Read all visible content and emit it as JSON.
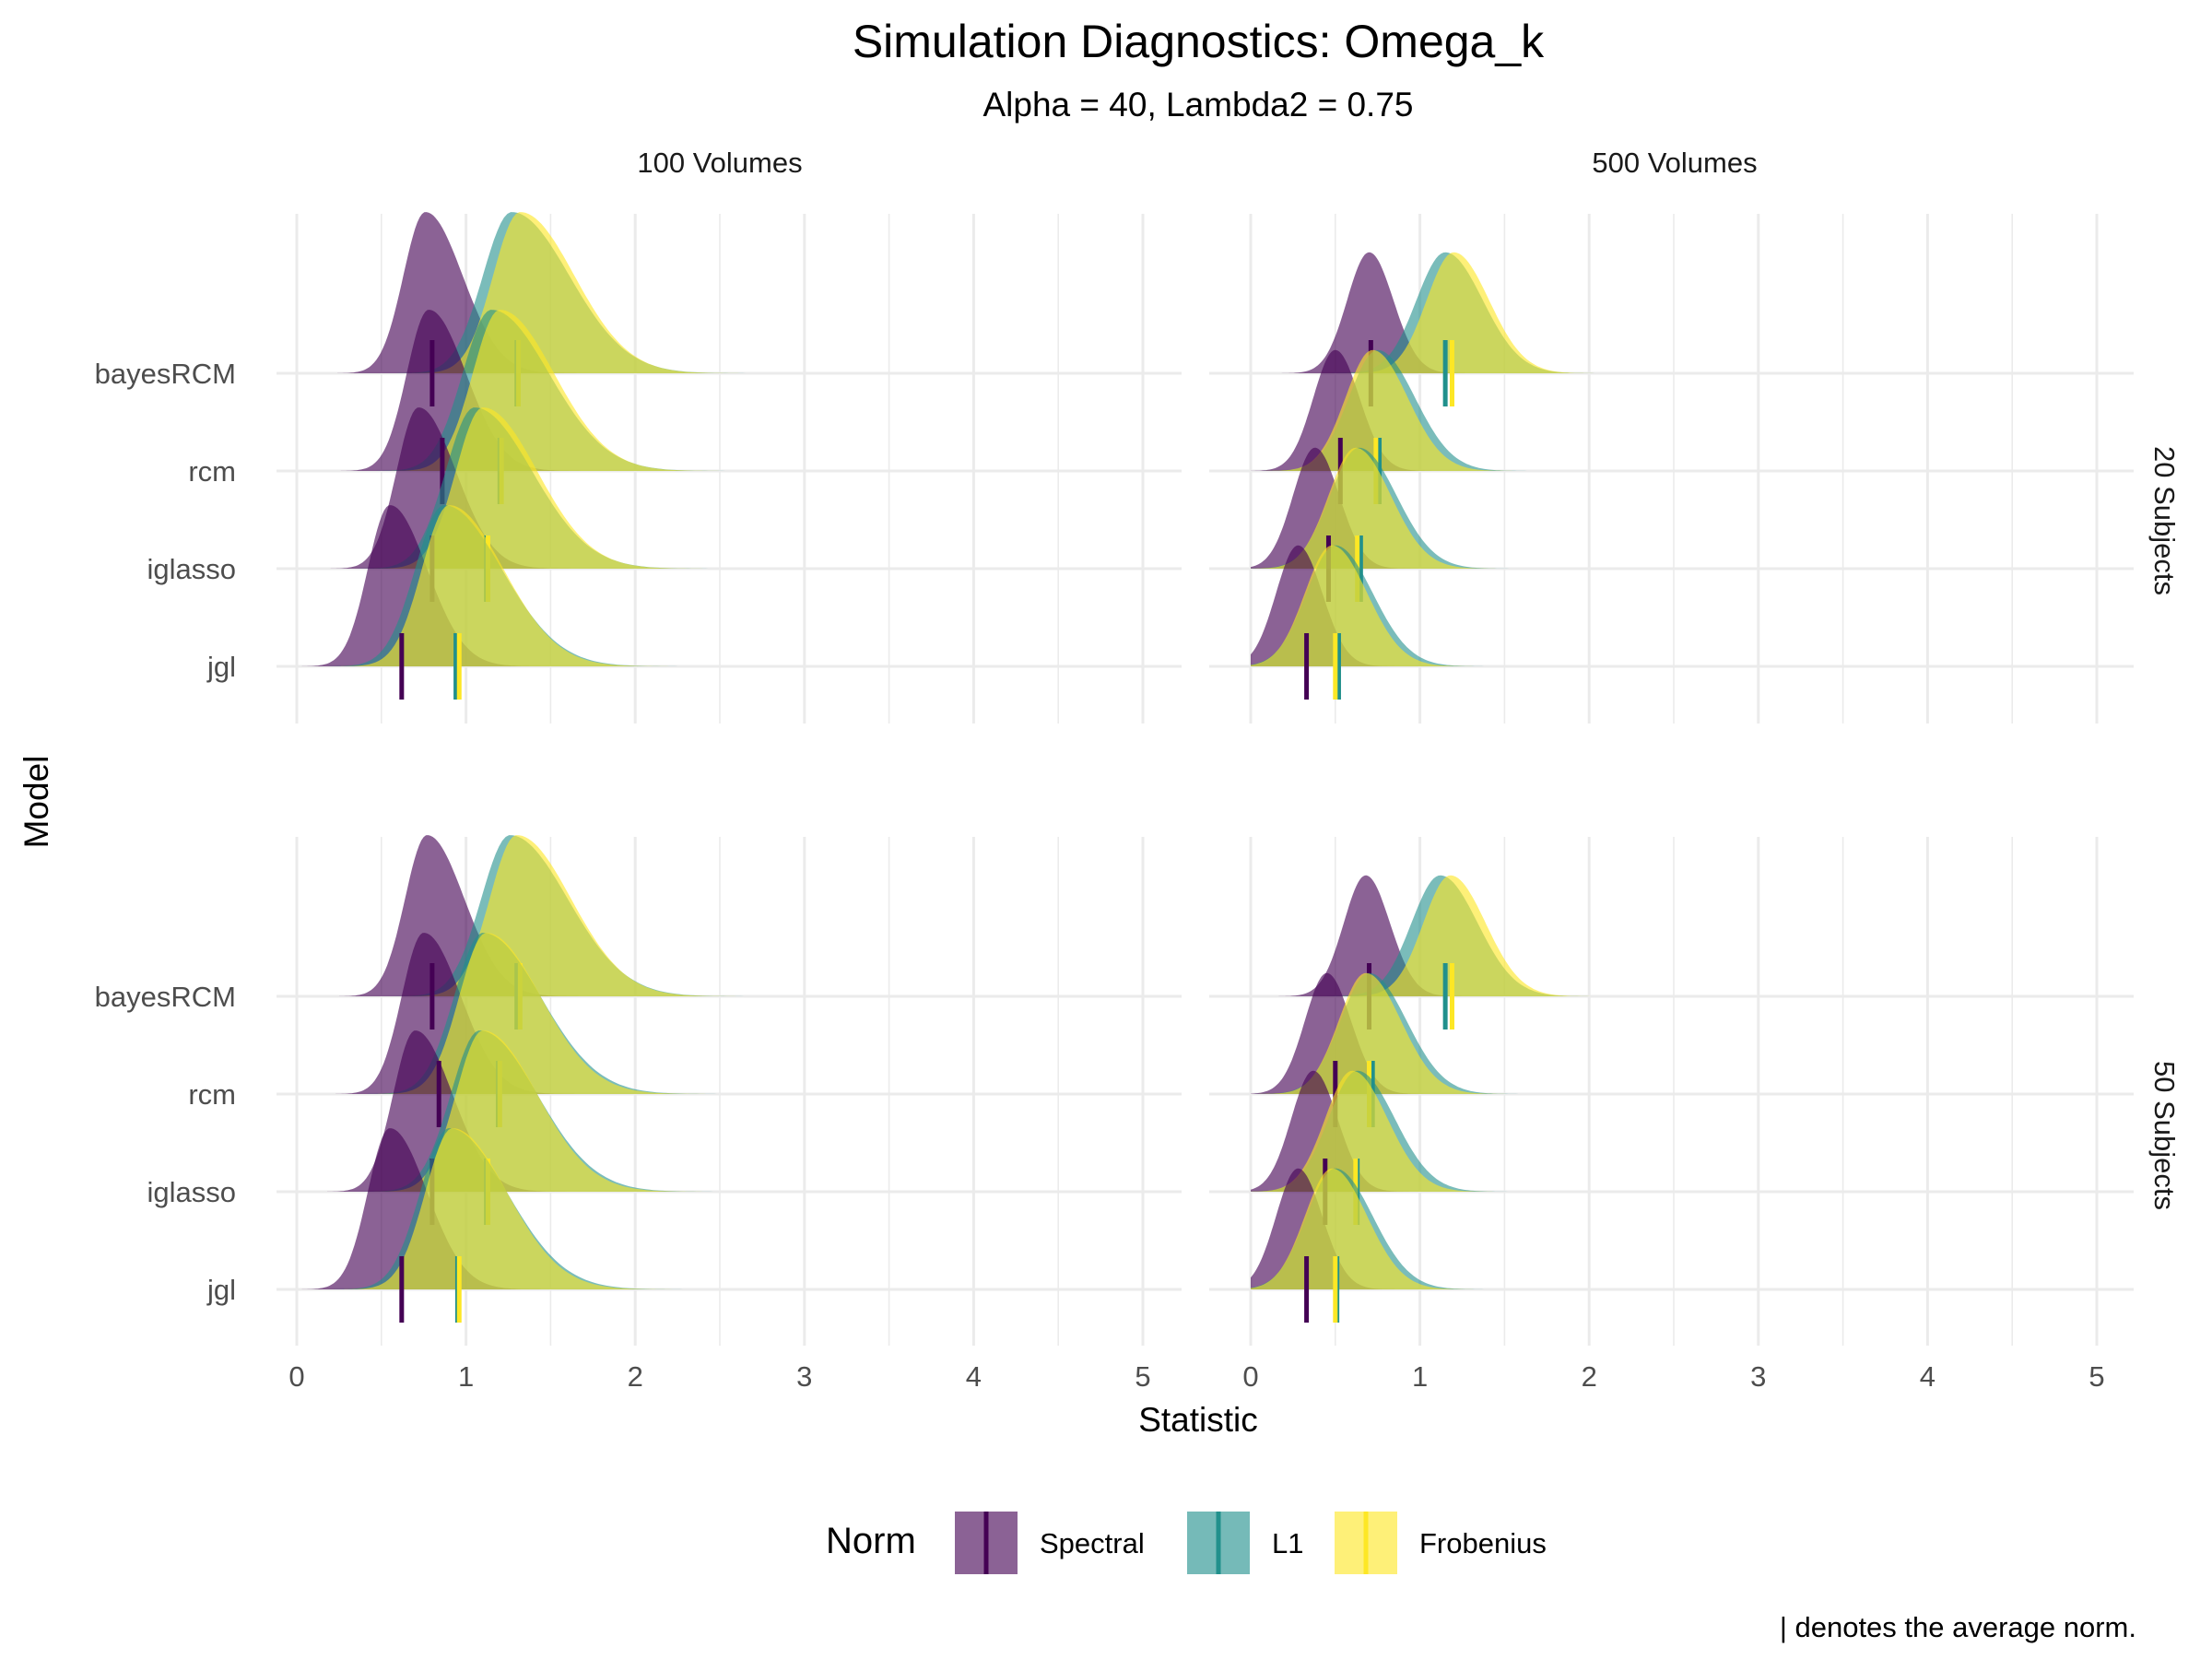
{
  "chart_data": {
    "type": "ridgeline",
    "title": "Simulation Diagnostics: Omega_k",
    "subtitle": "Alpha = 40, Lambda2 = 0.75",
    "xlabel": "Statistic",
    "ylabel": "Model",
    "xlim": [
      0,
      5
    ],
    "x_ticks": [
      "0",
      "1",
      "2",
      "3",
      "4",
      "5"
    ],
    "grid": true,
    "facet_columns": [
      "100 Volumes",
      "500 Volumes"
    ],
    "facet_rows": [
      "20 Subjects",
      "50 Subjects"
    ],
    "models": [
      "bayesRCM",
      "rcm",
      "iglasso",
      "jgl"
    ],
    "legend": {
      "title": "Norm",
      "position": "bottom",
      "entries": [
        {
          "name": "Spectral",
          "color": "#440154"
        },
        {
          "name": "L1",
          "color": "#21908C"
        },
        {
          "name": "Frobenius",
          "color": "#FDE725"
        }
      ]
    },
    "caption": "| denotes the average norm.",
    "panels": [
      {
        "column": "100 Volumes",
        "row": "20 Subjects",
        "means": {
          "bayesRCM": {
            "Spectral": 0.8,
            "L1": 1.3,
            "Frobenius": 1.31
          },
          "rcm": {
            "Spectral": 0.86,
            "L1": 1.2,
            "Frobenius": 1.21
          },
          "iglasso": {
            "Spectral": 0.8,
            "L1": 1.12,
            "Frobenius": 1.13
          },
          "jgl": {
            "Spectral": 0.62,
            "L1": 0.94,
            "Frobenius": 0.96
          }
        },
        "density_peaks": {
          "bayesRCM": {
            "Spectral": 0.76,
            "L1": 1.27,
            "Frobenius": 1.32
          },
          "rcm": {
            "Spectral": 0.78,
            "L1": 1.15,
            "Frobenius": 1.2
          },
          "iglasso": {
            "Spectral": 0.72,
            "L1": 1.05,
            "Frobenius": 1.1
          },
          "jgl": {
            "Spectral": 0.55,
            "L1": 0.87,
            "Frobenius": 0.9
          }
        }
      },
      {
        "column": "500 Volumes",
        "row": "20 Subjects",
        "means": {
          "bayesRCM": {
            "Spectral": 0.71,
            "L1": 1.15,
            "Frobenius": 1.19
          },
          "rcm": {
            "Spectral": 0.53,
            "L1": 0.76,
            "Frobenius": 0.74
          },
          "iglasso": {
            "Spectral": 0.46,
            "L1": 0.65,
            "Frobenius": 0.63
          },
          "jgl": {
            "Spectral": 0.33,
            "L1": 0.52,
            "Frobenius": 0.5
          }
        },
        "density_peaks": {
          "bayesRCM": {
            "Spectral": 0.7,
            "L1": 1.15,
            "Frobenius": 1.2
          },
          "rcm": {
            "Spectral": 0.5,
            "L1": 0.75,
            "Frobenius": 0.72
          },
          "iglasso": {
            "Spectral": 0.38,
            "L1": 0.64,
            "Frobenius": 0.62
          },
          "jgl": {
            "Spectral": 0.28,
            "L1": 0.5,
            "Frobenius": 0.48
          }
        }
      },
      {
        "column": "100 Volumes",
        "row": "50 Subjects",
        "means": {
          "bayesRCM": {
            "Spectral": 0.8,
            "L1": 1.3,
            "Frobenius": 1.32
          },
          "rcm": {
            "Spectral": 0.84,
            "L1": 1.19,
            "Frobenius": 1.2
          },
          "iglasso": {
            "Spectral": 0.8,
            "L1": 1.12,
            "Frobenius": 1.13
          },
          "jgl": {
            "Spectral": 0.62,
            "L1": 0.95,
            "Frobenius": 0.96
          }
        },
        "density_peaks": {
          "bayesRCM": {
            "Spectral": 0.77,
            "L1": 1.26,
            "Frobenius": 1.3
          },
          "rcm": {
            "Spectral": 0.75,
            "L1": 1.1,
            "Frobenius": 1.12
          },
          "iglasso": {
            "Spectral": 0.7,
            "L1": 1.08,
            "Frobenius": 1.1
          },
          "jgl": {
            "Spectral": 0.55,
            "L1": 0.9,
            "Frobenius": 0.92
          }
        }
      },
      {
        "column": "500 Volumes",
        "row": "50 Subjects",
        "means": {
          "bayesRCM": {
            "Spectral": 0.7,
            "L1": 1.15,
            "Frobenius": 1.19
          },
          "rcm": {
            "Spectral": 0.5,
            "L1": 0.72,
            "Frobenius": 0.7
          },
          "iglasso": {
            "Spectral": 0.44,
            "L1": 0.63,
            "Frobenius": 0.62
          },
          "jgl": {
            "Spectral": 0.33,
            "L1": 0.51,
            "Frobenius": 0.5
          }
        },
        "density_peaks": {
          "bayesRCM": {
            "Spectral": 0.68,
            "L1": 1.12,
            "Frobenius": 1.18
          },
          "rcm": {
            "Spectral": 0.45,
            "L1": 0.7,
            "Frobenius": 0.68
          },
          "iglasso": {
            "Spectral": 0.37,
            "L1": 0.63,
            "Frobenius": 0.6
          },
          "jgl": {
            "Spectral": 0.28,
            "L1": 0.5,
            "Frobenius": 0.48
          }
        }
      }
    ]
  }
}
